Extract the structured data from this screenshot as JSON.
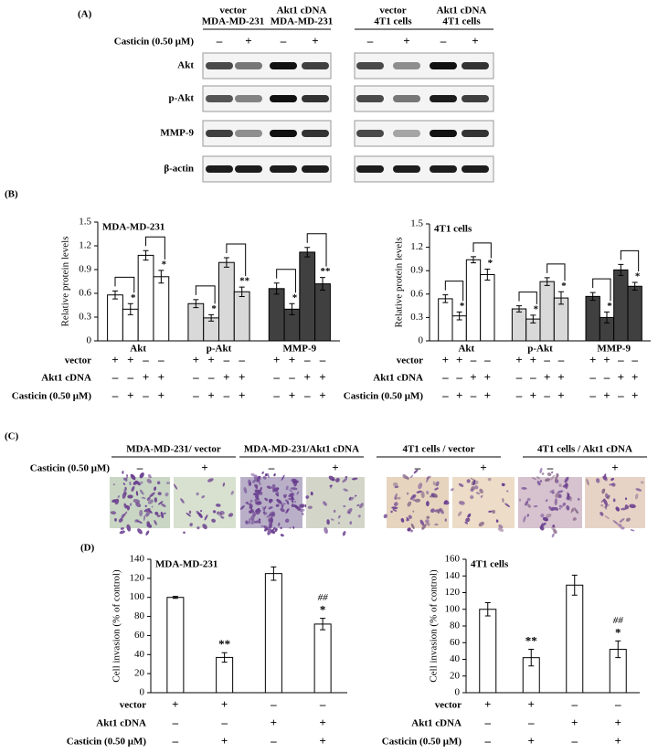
{
  "panel_labels": {
    "A": "(A)",
    "B": "(B)",
    "C": "(C)",
    "D": "(D)"
  },
  "panel_a": {
    "headers": [
      [
        "vector",
        "MDA-MD-231"
      ],
      [
        "Akt1 cDNA",
        "MDA-MD-231"
      ],
      [
        "vector",
        "4T1 cells"
      ],
      [
        "Akt1 cDNA",
        "4T1 cells"
      ]
    ],
    "casticin": {
      "label": "Casticin (0.50 μM)",
      "signs": [
        "–",
        "+",
        "–",
        "+",
        "–",
        "+",
        "–",
        "+"
      ]
    },
    "rows": [
      "Akt",
      "p-Akt",
      "MMP-9",
      "β-actin"
    ]
  },
  "panel_c": {
    "headers": [
      "MDA-MD-231/ vector",
      "MDA-MD-231/Akt1 cDNA",
      "4T1 cells / vector",
      "4T1 cells / Akt1 cDNA"
    ],
    "casticin": {
      "label": "Casticin (0.50 μM)",
      "signs": [
        "–",
        "+",
        "–",
        "+",
        "–",
        "+",
        "–",
        "+"
      ]
    }
  },
  "chart_data": [
    {
      "type": "grouped-bar",
      "title": "MDA-MD-231",
      "ylabel": "Relative protein levels",
      "ylim": [
        0,
        1.5
      ],
      "yticks": [
        0,
        0.3,
        0.6,
        0.9,
        1.2,
        1.5
      ],
      "groups": [
        {
          "name": "Akt",
          "color": "#ffffff",
          "values": [
            0.58,
            0.4,
            1.08,
            0.81
          ],
          "errors": [
            0.05,
            0.07,
            0.06,
            0.08
          ],
          "labels": [
            null,
            "*",
            null,
            "*"
          ]
        },
        {
          "name": "p-Akt",
          "color": "#d9d9d9",
          "values": [
            0.47,
            0.29,
            0.99,
            0.62
          ],
          "errors": [
            0.05,
            0.04,
            0.06,
            0.06
          ],
          "labels": [
            null,
            "*",
            null,
            "**"
          ]
        },
        {
          "name": "MMP-9",
          "color": "#404040",
          "values": [
            0.66,
            0.4,
            1.12,
            0.72
          ],
          "errors": [
            0.07,
            0.07,
            0.06,
            0.08
          ],
          "labels": [
            null,
            "*",
            null,
            "**"
          ]
        }
      ],
      "conditions": [
        {
          "label": "vector",
          "signs": [
            "+",
            "+",
            "–",
            "–"
          ]
        },
        {
          "label": "Akt1 cDNA",
          "signs": [
            "–",
            "–",
            "+",
            "+"
          ]
        },
        {
          "label": "Casticin (0.50 μM)",
          "signs": [
            "–",
            "+",
            "–",
            "+"
          ]
        }
      ]
    },
    {
      "type": "grouped-bar",
      "title": "4T1 cells",
      "ylabel": "Relative protein levels",
      "ylim": [
        0,
        1.5
      ],
      "yticks": [
        0,
        0.3,
        0.6,
        0.9,
        1.2,
        1.5
      ],
      "groups": [
        {
          "name": "Akt",
          "color": "#ffffff",
          "values": [
            0.54,
            0.32,
            1.04,
            0.85
          ],
          "errors": [
            0.05,
            0.05,
            0.04,
            0.07
          ],
          "labels": [
            null,
            "*",
            null,
            "*"
          ]
        },
        {
          "name": "p-Akt",
          "color": "#d9d9d9",
          "values": [
            0.41,
            0.28,
            0.76,
            0.55
          ],
          "errors": [
            0.04,
            0.05,
            0.05,
            0.08
          ],
          "labels": [
            null,
            "*",
            null,
            "*"
          ]
        },
        {
          "name": "MMP-9",
          "color": "#404040",
          "values": [
            0.57,
            0.3,
            0.91,
            0.7
          ],
          "errors": [
            0.05,
            0.07,
            0.07,
            0.05
          ],
          "labels": [
            null,
            "*",
            null,
            "*"
          ]
        }
      ],
      "conditions": [
        {
          "label": "vector",
          "signs": [
            "+",
            "+",
            "–",
            "–"
          ]
        },
        {
          "label": "Akt1 cDNA",
          "signs": [
            "–",
            "–",
            "+",
            "+"
          ]
        },
        {
          "label": "Casticin (0.50 μM)",
          "signs": [
            "–",
            "+",
            "–",
            "+"
          ]
        }
      ]
    },
    {
      "type": "bar",
      "title": "MDA-MD-231",
      "ylabel": "Cell invasion (% of control)",
      "ylim": [
        0,
        140
      ],
      "yticks": [
        0,
        20,
        40,
        60,
        80,
        100,
        120,
        140
      ],
      "color": "#ffffff",
      "values": [
        100,
        37,
        125,
        72
      ],
      "errors": [
        1,
        5,
        7,
        6
      ],
      "labels": [
        null,
        "**",
        null,
        "*"
      ],
      "labels2": [
        null,
        null,
        null,
        "##"
      ],
      "conditions": [
        {
          "label": "vector",
          "signs": [
            "+",
            "+",
            "–",
            "–"
          ]
        },
        {
          "label": "Akt1 cDNA",
          "signs": [
            "–",
            "–",
            "+",
            "+"
          ]
        },
        {
          "label": "Casticin (0.50 μM)",
          "signs": [
            "–",
            "+",
            "–",
            "+"
          ]
        }
      ]
    },
    {
      "type": "bar",
      "title": "4T1 cells",
      "ylabel": "Cell invasion (% of control)",
      "ylim": [
        0,
        160
      ],
      "yticks": [
        0,
        20,
        40,
        60,
        80,
        100,
        120,
        140,
        160
      ],
      "color": "#ffffff",
      "values": [
        100,
        42,
        129,
        52
      ],
      "errors": [
        8,
        10,
        12,
        10
      ],
      "labels": [
        null,
        "**",
        null,
        "*"
      ],
      "labels2": [
        null,
        null,
        null,
        "##"
      ],
      "conditions": [
        {
          "label": "vector",
          "signs": [
            "+",
            "+",
            "–",
            "–"
          ]
        },
        {
          "label": "Akt1 cDNA",
          "signs": [
            "–",
            "–",
            "+",
            "+"
          ]
        },
        {
          "label": "Casticin (0.50 μM)",
          "signs": [
            "–",
            "+",
            "–",
            "+"
          ]
        }
      ]
    }
  ]
}
